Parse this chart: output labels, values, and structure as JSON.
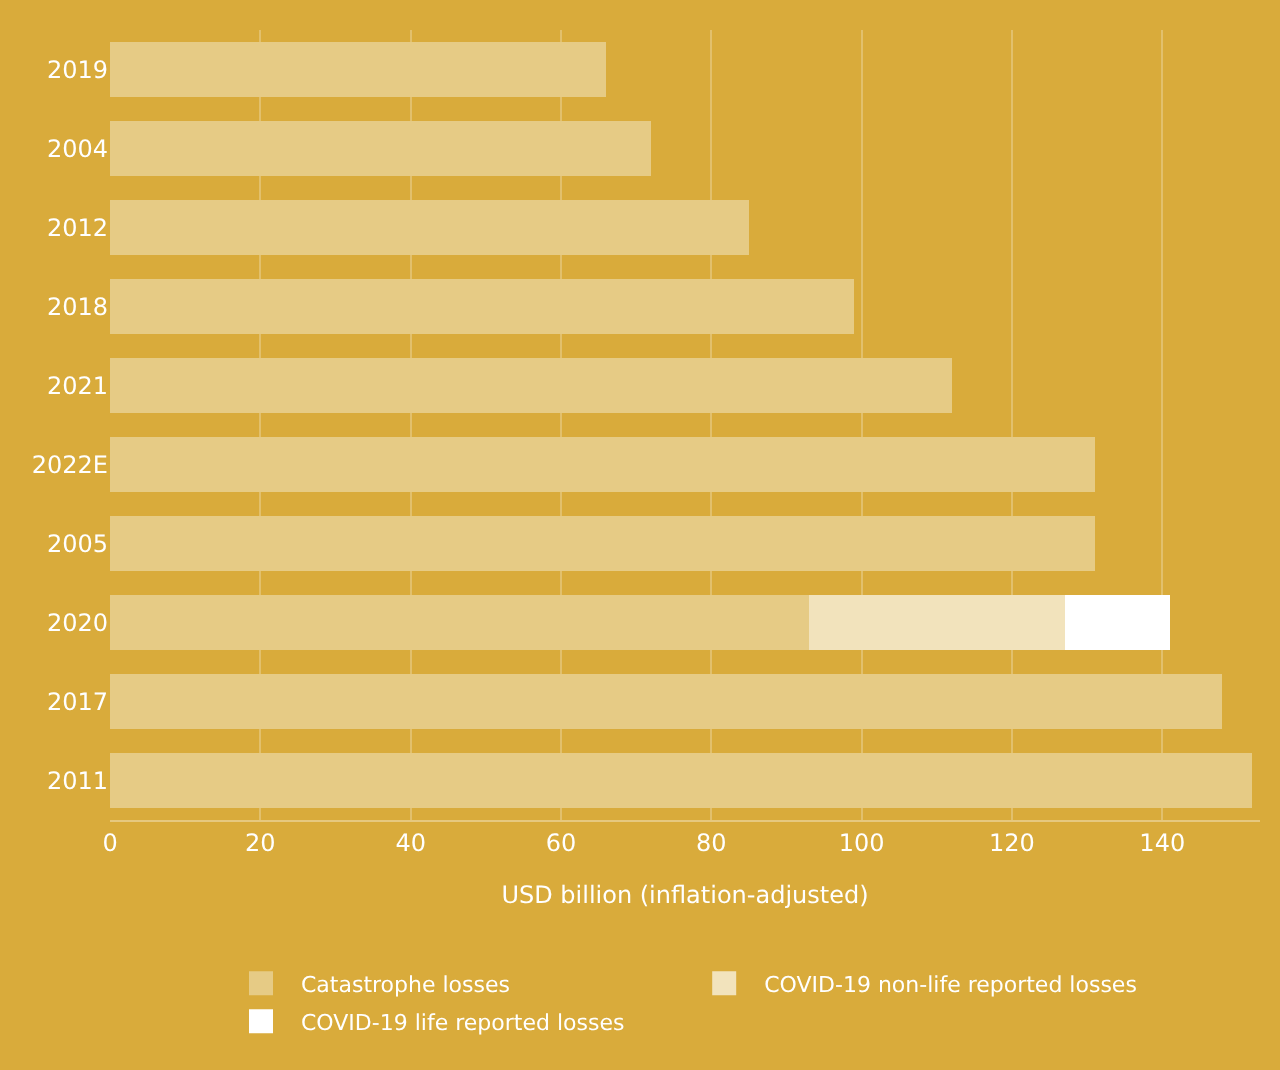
{
  "chart_data": {
    "type": "bar",
    "orientation": "horizontal",
    "stacked": true,
    "xlabel": "USD billion (inflation-adjusted)",
    "categories": [
      "2019",
      "2004",
      "2012",
      "2018",
      "2021",
      "2022E",
      "2005",
      "2020",
      "2017",
      "2011"
    ],
    "series": [
      {
        "name": "Catastrophe losses",
        "color": "#e6cb85",
        "values": [
          66,
          72,
          85,
          99,
          112,
          131,
          131,
          93,
          148,
          152
        ]
      },
      {
        "name": "COVID-19 non-life reported losses",
        "color": "#f2e3bc",
        "values": [
          null,
          null,
          null,
          null,
          null,
          null,
          null,
          34,
          null,
          null
        ]
      },
      {
        "name": "COVID-19 life reported losses",
        "color": "#ffffff",
        "values": [
          null,
          null,
          null,
          null,
          null,
          null,
          null,
          14,
          null,
          null
        ]
      }
    ],
    "xlim": [
      0,
      153
    ],
    "xticks": [
      0,
      20,
      40,
      60,
      80,
      100,
      120,
      140
    ],
    "grid": "x",
    "legend": "bottom"
  }
}
